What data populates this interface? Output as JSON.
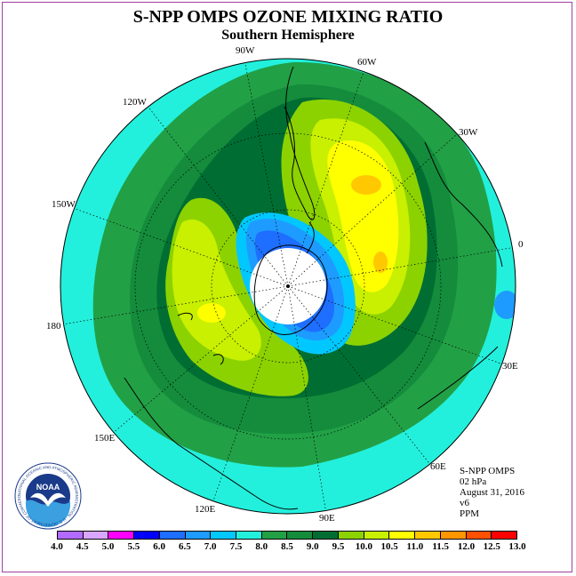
{
  "header": {
    "title": "S-NPP OMPS OZONE MIXING RATIO",
    "subtitle": "Southern Hemisphere"
  },
  "map": {
    "projection": "south-polar-stereographic",
    "longitude_labels": [
      "90W",
      "60W",
      "30W",
      "0",
      "30E",
      "60E",
      "90E",
      "120E",
      "150E",
      "180",
      "150W",
      "120W"
    ],
    "land_outline_color": "#000000",
    "graticule_style": "dotted"
  },
  "info": {
    "instrument": "S-NPP OMPS",
    "level": "02 hPa",
    "date": "August 31, 2016",
    "version": "v6",
    "units": "PPM"
  },
  "colorbar": {
    "levels": [
      "4.0",
      "4.5",
      "5.0",
      "5.5",
      "6.0",
      "6.5",
      "7.0",
      "7.5",
      "8.0",
      "8.5",
      "9.0",
      "9.5",
      "10.0",
      "10.5",
      "11.0",
      "11.5",
      "12.0",
      "12.5",
      "13.0"
    ],
    "colors": [
      "#b36bff",
      "#d9a6ff",
      "#ff00ff",
      "#0000ff",
      "#1e6eff",
      "#1e9bff",
      "#00c8ff",
      "#22f0dc",
      "#22a046",
      "#148c3c",
      "#006e32",
      "#8cd200",
      "#c8f000",
      "#ffff00",
      "#ffc800",
      "#ff9600",
      "#ff5000",
      "#ff0000",
      "#8b5a3c"
    ]
  },
  "logo": {
    "text": "NOAA",
    "ring_text": "NATIONAL OCEANIC AND ATMOSPHERIC ADMINISTRATION · U.S. DEPARTMENT OF COMMERCE"
  }
}
